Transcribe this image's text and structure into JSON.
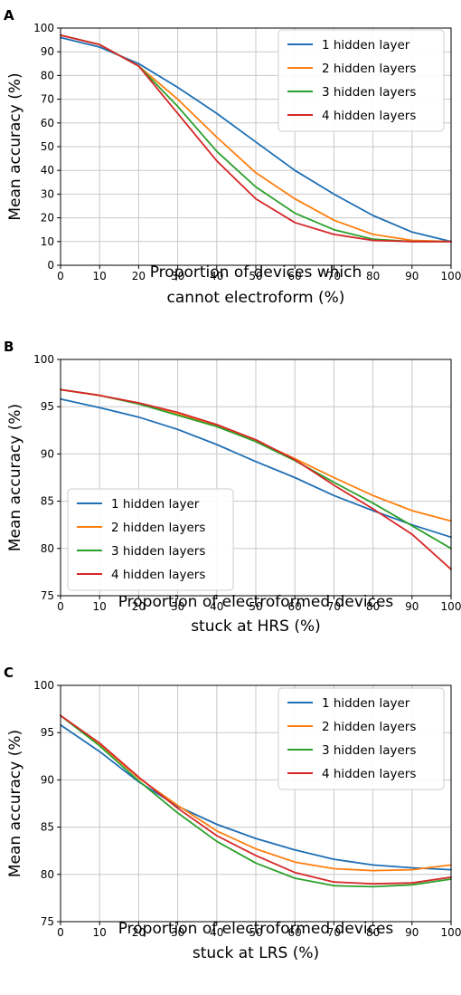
{
  "colors": {
    "1 hidden layer": "#1f6fb4",
    "2 hidden layers": "#ff7f0e",
    "3 hidden layers": "#2ca02c",
    "4 hidden layers": "#d62728"
  },
  "chart_data": [
    {
      "panel": "A",
      "type": "line",
      "xlabel": [
        "Proportion of devices which",
        "cannot electroform (%)"
      ],
      "ylabel": "Mean accuracy (%)",
      "xlim": [
        0,
        100
      ],
      "ylim": [
        0,
        100
      ],
      "xticks": [
        0,
        10,
        20,
        30,
        40,
        50,
        60,
        70,
        80,
        90,
        100
      ],
      "yticks": [
        0,
        10,
        20,
        30,
        40,
        50,
        60,
        70,
        80,
        90,
        100
      ],
      "grid": true,
      "legend_position": "top-right",
      "x": [
        0,
        10,
        20,
        30,
        40,
        50,
        60,
        70,
        80,
        90,
        100
      ],
      "series": [
        {
          "name": "1 hidden layer",
          "values": [
            96,
            92,
            85,
            75,
            64,
            52,
            40,
            30,
            21,
            14,
            10
          ]
        },
        {
          "name": "2 hidden layers",
          "values": [
            97,
            93,
            84,
            70,
            54,
            39,
            28,
            19,
            13,
            10.5,
            10
          ]
        },
        {
          "name": "3 hidden layers",
          "values": [
            97,
            93,
            84,
            67,
            48,
            33,
            22,
            15,
            11,
            10,
            10
          ]
        },
        {
          "name": "4 hidden layers",
          "values": [
            97,
            93,
            84,
            64,
            44,
            28,
            18,
            13,
            10.5,
            10,
            10
          ]
        }
      ]
    },
    {
      "panel": "B",
      "type": "line",
      "xlabel": [
        "Proportion of electroformed devices",
        "stuck at HRS (%)"
      ],
      "ylabel": "Mean accuracy (%)",
      "xlim": [
        0,
        100
      ],
      "ylim": [
        75,
        100
      ],
      "xticks": [
        0,
        10,
        20,
        30,
        40,
        50,
        60,
        70,
        80,
        90,
        100
      ],
      "yticks": [
        75,
        80,
        85,
        90,
        95,
        100
      ],
      "grid": true,
      "legend_position": "bottom-left",
      "x": [
        0,
        10,
        20,
        30,
        40,
        50,
        60,
        70,
        80,
        90,
        100
      ],
      "series": [
        {
          "name": "1 hidden layer",
          "values": [
            95.8,
            94.9,
            93.9,
            92.6,
            91,
            89.2,
            87.5,
            85.6,
            84,
            82.5,
            81.2
          ]
        },
        {
          "name": "2 hidden layers",
          "values": [
            96.8,
            96.2,
            95.3,
            94.2,
            93,
            91.4,
            89.5,
            87.5,
            85.6,
            84,
            82.9
          ]
        },
        {
          "name": "3 hidden layers",
          "values": [
            96.8,
            96.2,
            95.3,
            94.1,
            92.9,
            91.3,
            89.3,
            87,
            84.8,
            82.4,
            80
          ]
        },
        {
          "name": "4 hidden layers",
          "values": [
            96.8,
            96.2,
            95.4,
            94.4,
            93.1,
            91.5,
            89.4,
            86.7,
            84.2,
            81.5,
            77.8
          ]
        }
      ]
    },
    {
      "panel": "C",
      "type": "line",
      "xlabel": [
        "Proportion of electroformed devices",
        "stuck at LRS (%)"
      ],
      "ylabel": "Mean accuracy (%)",
      "xlim": [
        0,
        100
      ],
      "ylim": [
        75,
        100
      ],
      "xticks": [
        0,
        10,
        20,
        30,
        40,
        50,
        60,
        70,
        80,
        90,
        100
      ],
      "yticks": [
        75,
        80,
        85,
        90,
        95,
        100
      ],
      "grid": true,
      "legend_position": "top-right",
      "x": [
        0,
        10,
        20,
        30,
        40,
        50,
        60,
        70,
        80,
        90,
        100
      ],
      "series": [
        {
          "name": "1 hidden layer",
          "values": [
            95.8,
            93,
            89.8,
            87.2,
            85.3,
            83.8,
            82.6,
            81.6,
            81,
            80.7,
            80.5
          ]
        },
        {
          "name": "2 hidden layers",
          "values": [
            96.8,
            93.8,
            90.2,
            87.3,
            84.6,
            82.7,
            81.3,
            80.6,
            80.4,
            80.5,
            81
          ]
        },
        {
          "name": "3 hidden layers",
          "values": [
            96.8,
            93.6,
            89.9,
            86.5,
            83.5,
            81.2,
            79.6,
            78.8,
            78.7,
            78.9,
            79.5
          ]
        },
        {
          "name": "4 hidden layers",
          "values": [
            96.8,
            93.9,
            90.3,
            87,
            84.1,
            82,
            80.2,
            79.2,
            79,
            79.1,
            79.7
          ]
        }
      ]
    }
  ]
}
